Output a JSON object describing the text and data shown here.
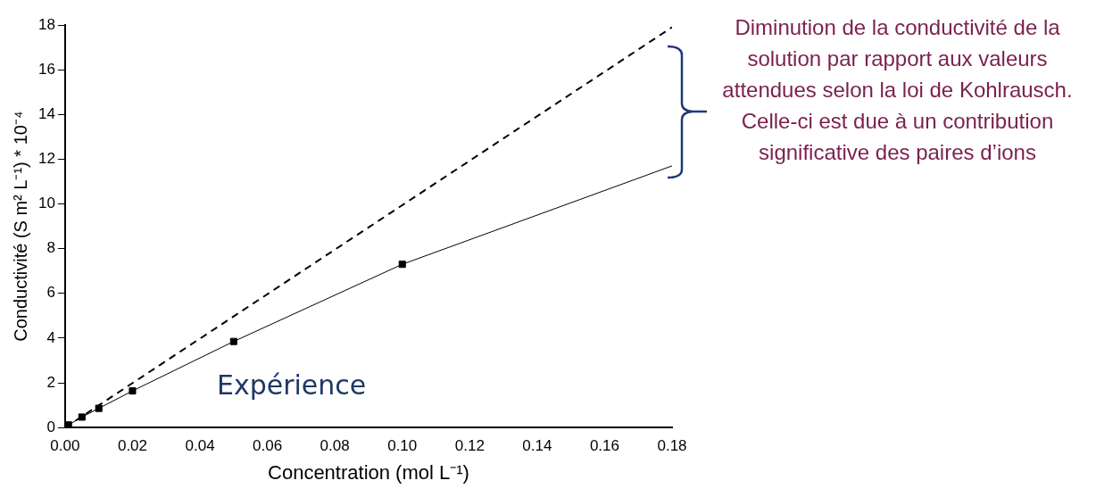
{
  "chart_data": {
    "type": "line",
    "xlabel": "Concentration (mol L⁻¹)",
    "ylabel": "Conductivité (S m² L⁻¹) * 10⁻⁴",
    "xlim": [
      0,
      0.18
    ],
    "ylim": [
      0,
      18
    ],
    "xticks": [
      {
        "value": 0,
        "label": "0.00"
      },
      {
        "value": 0.02,
        "label": "0.02"
      },
      {
        "value": 0.04,
        "label": "0.04"
      },
      {
        "value": 0.06,
        "label": "0.06"
      },
      {
        "value": 0.08,
        "label": "0.08"
      },
      {
        "value": 0.1,
        "label": "0.10"
      },
      {
        "value": 0.12,
        "label": "0.12"
      },
      {
        "value": 0.14,
        "label": "0.14"
      },
      {
        "value": 0.16,
        "label": "0.16"
      },
      {
        "value": 0.18,
        "label": "0.18"
      }
    ],
    "yticks": [
      0,
      2,
      4,
      6,
      8,
      10,
      12,
      14,
      16,
      18
    ],
    "grid": false,
    "legend": false,
    "series": [
      {
        "name": "Expérience",
        "color": "#000000",
        "x": [
          0.001,
          0.005,
          0.01,
          0.02,
          0.05,
          0.1
        ],
        "values": [
          0.12,
          0.47,
          0.86,
          1.64,
          3.85,
          7.3
        ],
        "marker": "square",
        "line_style": "solid"
      },
      {
        "color": "#000000",
        "x": [
          0.1,
          0.18
        ],
        "values": [
          7.3,
          11.7
        ],
        "marker": "none",
        "line_style": "solid"
      },
      {
        "color": "#000000",
        "x": [
          0,
          0.18
        ],
        "values": [
          0,
          17.9
        ],
        "marker": "none",
        "line_style": "dashed"
      }
    ],
    "annotations": [
      "Diminution de la conductivité de la solution par rapport aux valeurs attendues selon la loi de Kohlrausch. Celle-ci est due à un contribution significative des paires d’ions"
    ]
  }
}
